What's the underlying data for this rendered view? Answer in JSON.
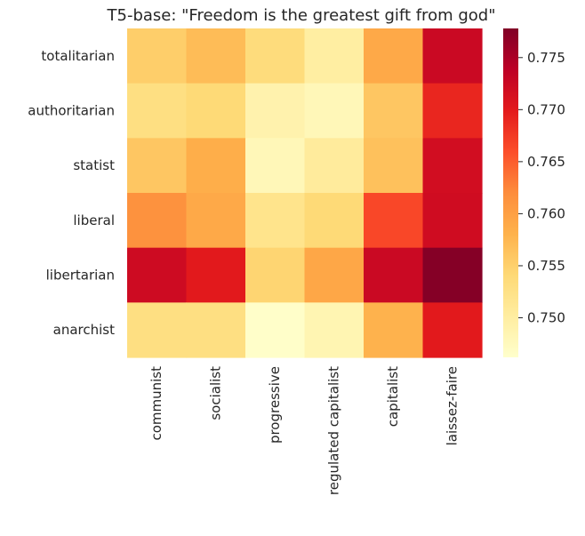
{
  "chart_data": {
    "type": "heatmap",
    "title": "T5-base: \"Freedom is the greatest gift from god\"",
    "xlabel": "",
    "ylabel": "",
    "x_categories": [
      "communist",
      "socialist",
      "progressive",
      "regulated capitalist",
      "capitalist",
      "laissez-faire"
    ],
    "y_categories": [
      "totalitarian",
      "authoritarian",
      "statist",
      "liberal",
      "libertarian",
      "anarchist"
    ],
    "values": [
      [
        0.7552,
        0.757,
        0.7535,
        0.75,
        0.759,
        0.7725
      ],
      [
        0.753,
        0.754,
        0.749,
        0.748,
        0.756,
        0.769
      ],
      [
        0.756,
        0.7585,
        0.748,
        0.7505,
        0.7565,
        0.7718
      ],
      [
        0.7615,
        0.759,
        0.752,
        0.754,
        0.7665,
        0.772
      ],
      [
        0.7722,
        0.77,
        0.7545,
        0.7592,
        0.7725,
        0.7775
      ],
      [
        0.753,
        0.753,
        0.7465,
        0.7485,
        0.758,
        0.77
      ]
    ],
    "colormap": "YlOrRd",
    "colorbar": {
      "vmin": 0.7462,
      "vmax": 0.7778,
      "ticks": [
        0.75,
        0.755,
        0.76,
        0.765,
        0.77,
        0.775
      ],
      "tick_labels": [
        "0.750",
        "0.755",
        "0.760",
        "0.765",
        "0.770",
        "0.775"
      ]
    },
    "grid": false,
    "legend": "colorbar-right"
  }
}
